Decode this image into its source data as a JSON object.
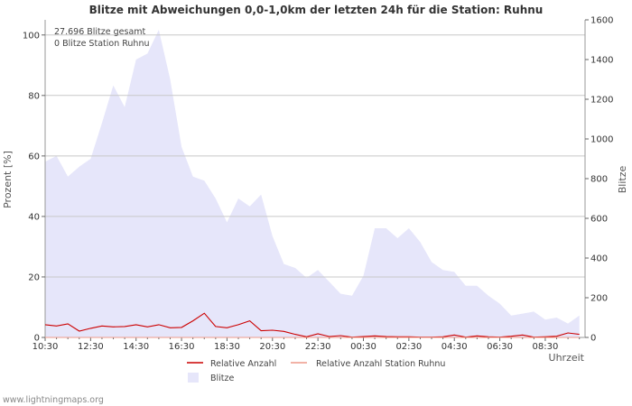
{
  "chart_data": {
    "type": "area",
    "title": "Blitze mit Abweichungen 0,0-1,0km der letzten 24h für die Station: Ruhnu",
    "info_lines": [
      "27.696 Blitze gesamt",
      "0 Blitze Station Ruhnu"
    ],
    "ylabel_left": "Prozent   [%]",
    "ylabel_right": "Blitze",
    "xlabel": "Uhrzeit",
    "ylim_left": [
      0,
      105
    ],
    "ylim_right": [
      0,
      1600
    ],
    "yticks_left": [
      0,
      20,
      40,
      60,
      80,
      100
    ],
    "yticks_right": [
      0,
      200,
      400,
      600,
      800,
      1000,
      1200,
      1400,
      1600
    ],
    "xlim": [
      0,
      47.5
    ],
    "xticks": [
      {
        "label": "10:30",
        "x": 0
      },
      {
        "label": "12:30",
        "x": 4
      },
      {
        "label": "14:30",
        "x": 8
      },
      {
        "label": "16:30",
        "x": 12
      },
      {
        "label": "18:30",
        "x": 16
      },
      {
        "label": "20:30",
        "x": 20
      },
      {
        "label": "22:30",
        "x": 24
      },
      {
        "label": "00:30",
        "x": 28
      },
      {
        "label": "02:30",
        "x": 32
      },
      {
        "label": "04:30",
        "x": 36
      },
      {
        "label": "06:30",
        "x": 40
      },
      {
        "label": "08:30",
        "x": 44
      }
    ],
    "series": [
      {
        "name": "Blitze",
        "axis": "right",
        "color": "#e6e6fa",
        "values": [
          885,
          915,
          810,
          860,
          900,
          1080,
          1270,
          1160,
          1400,
          1430,
          1550,
          1300,
          960,
          810,
          790,
          700,
          580,
          700,
          660,
          720,
          510,
          370,
          350,
          300,
          340,
          280,
          220,
          210,
          310,
          550,
          550,
          500,
          550,
          480,
          380,
          340,
          330,
          260,
          260,
          210,
          170,
          110,
          120,
          130,
          90,
          100,
          70,
          110
        ]
      },
      {
        "name": "Relative Anzahl",
        "axis": "left",
        "color": "#cc0000",
        "values": [
          4.2,
          3.8,
          4.5,
          2.1,
          3.0,
          3.8,
          3.5,
          3.6,
          4.2,
          3.5,
          4.2,
          3.2,
          3.3,
          5.5,
          8.0,
          3.6,
          3.2,
          4.2,
          5.5,
          2.2,
          2.4,
          2.0,
          1.0,
          0.2,
          1.2,
          0.3,
          0.6,
          0.1,
          0.3,
          0.5,
          0.3,
          0.2,
          0.2,
          0.1,
          0.1,
          0.2,
          0.8,
          0.1,
          0.5,
          0.2,
          0.1,
          0.4,
          0.8,
          0.1,
          0.2,
          0.4,
          1.5,
          1.0
        ]
      },
      {
        "name": "Relative Anzahl Station Ruhnu",
        "axis": "left",
        "color": "#ee9988",
        "values": [
          0,
          0,
          0,
          0,
          0,
          0,
          0,
          0,
          0,
          0,
          0,
          0,
          0,
          0,
          0,
          0,
          0,
          0,
          0,
          0,
          0,
          0,
          0,
          0,
          0,
          0,
          0,
          0,
          0,
          0,
          0,
          0,
          0,
          0,
          0,
          0,
          0,
          0,
          0,
          0,
          0,
          0,
          0,
          0,
          0,
          0,
          0,
          0
        ]
      }
    ],
    "legend": [
      {
        "label": "Relative Anzahl",
        "symbol": "line",
        "color": "#cc0000"
      },
      {
        "label": "Relative Anzahl Station Ruhnu",
        "symbol": "line",
        "color": "#ee9988"
      },
      {
        "label": "Blitze",
        "symbol": "box",
        "color": "#e6e6fa"
      }
    ]
  },
  "footer": {
    "credit": "www.lightningmaps.org"
  }
}
